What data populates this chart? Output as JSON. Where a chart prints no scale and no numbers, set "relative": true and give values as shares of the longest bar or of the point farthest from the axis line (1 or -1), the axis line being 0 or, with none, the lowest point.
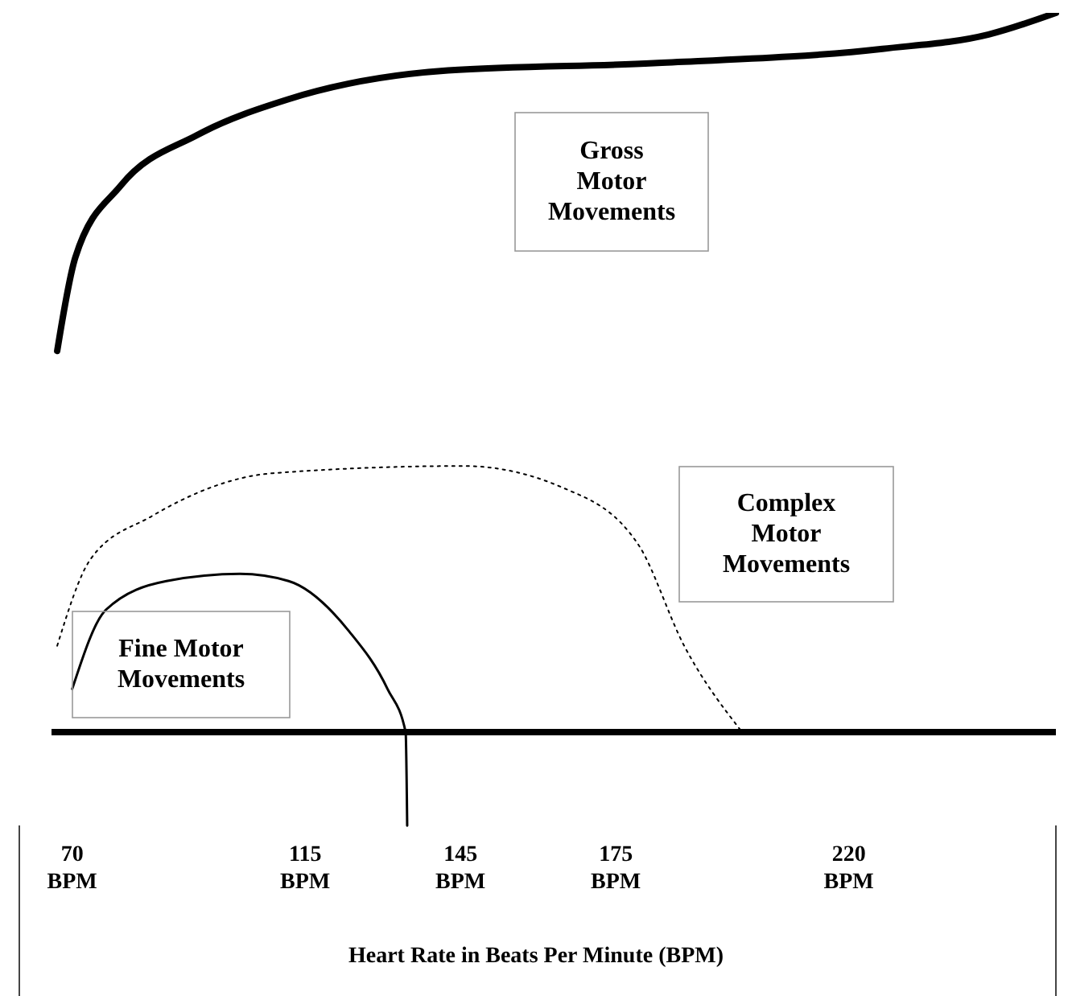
{
  "chart_data": {
    "type": "line",
    "relative": true,
    "xlabel": "Heart Rate in Beats Per Minute (BPM)",
    "xlim": [
      66,
      260
    ],
    "xticks": [
      {
        "value": 70,
        "label": "70 BPM"
      },
      {
        "value": 115,
        "label": "115 BPM"
      },
      {
        "value": 145,
        "label": "145 BPM"
      },
      {
        "value": 175,
        "label": "175 BPM"
      },
      {
        "value": 220,
        "label": "220 BPM"
      }
    ],
    "legend": false,
    "marker": "none",
    "series": [
      {
        "name": "Gross Motor Movements",
        "color": "#000000",
        "line_style": "solid",
        "x": [
          67.1,
          70.6,
          79.4,
          94.1,
          111.8,
          142.6,
          182.3,
          226.5,
          247,
          260
        ],
        "values": [
          0.53,
          0.66,
          0.76,
          0.83,
          0.88,
          0.92,
          0.93,
          0.95,
          0.97,
          1
        ]
      },
      {
        "name": "Complex Motor Movements",
        "color": "#000000",
        "line_style": "dotted",
        "x": [
          67.1,
          73.5,
          85.3,
          108.8,
          145.6,
          164.7,
          179.4,
          188.2,
          199.4
        ],
        "values": [
          0.12,
          0.24,
          0.3,
          0.36,
          0.37,
          0.34,
          0.26,
          0.12,
          0
        ]
      },
      {
        "name": "Fine Motor Movements",
        "color": "#000000",
        "line_style": "solid",
        "x": [
          70,
          76.5,
          88.2,
          102.4,
          111.8,
          123.5,
          130.9,
          134.4,
          134.7
        ],
        "values": [
          0.06,
          0.17,
          0.21,
          0.22,
          0.21,
          0.14,
          0.06,
          0,
          -0.13
        ]
      }
    ]
  }
}
